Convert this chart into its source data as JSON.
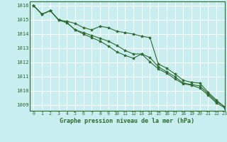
{
  "title": "Graphe pression niveau de la mer (hPa)",
  "bg_color": "#c8eef0",
  "grid_color": "#ffffff",
  "line_color": "#2d6a2d",
  "marker_color": "#2d6a2d",
  "xlim": [
    -0.5,
    23
  ],
  "ylim": [
    1008.6,
    1016.3
  ],
  "yticks": [
    1009,
    1010,
    1011,
    1012,
    1013,
    1014,
    1015,
    1016
  ],
  "xticks": [
    0,
    1,
    2,
    3,
    4,
    5,
    6,
    7,
    8,
    9,
    10,
    11,
    12,
    13,
    14,
    15,
    16,
    17,
    18,
    19,
    20,
    21,
    22,
    23
  ],
  "series": [
    [
      1016.0,
      1015.4,
      1015.65,
      1015.0,
      1014.9,
      1014.75,
      1014.45,
      1014.3,
      1014.55,
      1014.45,
      1014.2,
      1014.1,
      1014.0,
      1013.85,
      1013.75,
      1011.9,
      1011.6,
      1011.2,
      1010.75,
      1010.6,
      1010.55,
      1009.9,
      1009.35,
      1008.85
    ],
    [
      1016.0,
      1015.4,
      1015.65,
      1015.0,
      1014.8,
      1014.3,
      1014.1,
      1013.9,
      1013.7,
      1013.5,
      1013.2,
      1012.85,
      1012.6,
      1012.6,
      1012.35,
      1011.7,
      1011.35,
      1011.0,
      1010.55,
      1010.45,
      1010.35,
      1009.8,
      1009.25,
      1008.9
    ],
    [
      1016.0,
      1015.4,
      1015.65,
      1015.0,
      1014.8,
      1014.3,
      1014.0,
      1013.75,
      1013.5,
      1013.15,
      1012.75,
      1012.5,
      1012.3,
      1012.6,
      1012.05,
      1011.55,
      1011.25,
      1010.85,
      1010.5,
      1010.4,
      1010.2,
      1009.7,
      1009.15,
      1008.8
    ]
  ]
}
